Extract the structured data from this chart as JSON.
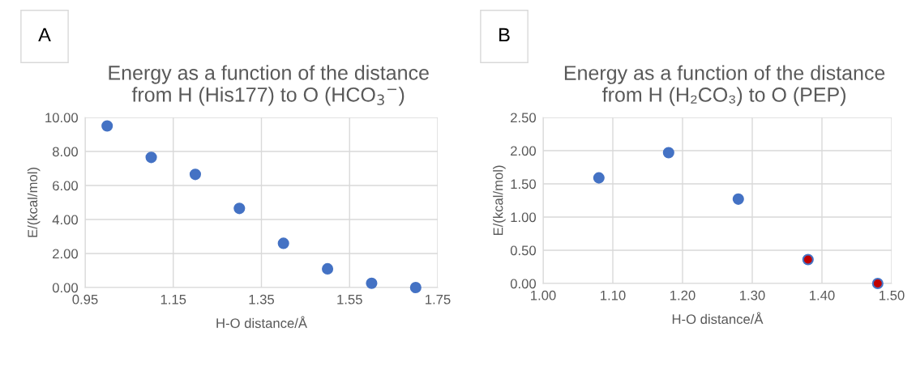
{
  "chart_data": [
    {
      "type": "scatter",
      "title": "Energy as a function of the distance\nfrom H (His177) to O (HCO$_{3}$$^{−}$)",
      "xlabel": "H-O distance/Å",
      "ylabel": "E/(kcal/mol)",
      "annotations": [
        "A"
      ],
      "x": [
        1.0,
        1.1,
        1.2,
        1.3,
        1.4,
        1.5,
        1.6,
        1.7
      ],
      "series": [
        {
          "color": "#4472c4",
          "values": [
            9.5,
            7.65,
            6.65,
            4.65,
            2.6,
            1.1,
            0.25,
            0.0
          ]
        }
      ],
      "xlim": [
        0.95,
        1.75
      ],
      "ylim": [
        0,
        10
      ],
      "xticks": [
        {
          "value": 0.95,
          "label": "0.95"
        },
        {
          "value": 1.15,
          "label": "1.15"
        },
        {
          "value": 1.35,
          "label": "1.35"
        },
        {
          "value": 1.55,
          "label": "1.55"
        },
        {
          "value": 1.75,
          "label": "1.75"
        }
      ],
      "yticks": [
        {
          "value": 0,
          "label": "0.00"
        },
        {
          "value": 2,
          "label": "2.00"
        },
        {
          "value": 4,
          "label": "4.00"
        },
        {
          "value": 6,
          "label": "6.00"
        },
        {
          "value": 8,
          "label": "8.00"
        },
        {
          "value": 10,
          "label": "10.00"
        }
      ],
      "grid": true,
      "marker": "circle"
    },
    {
      "type": "scatter",
      "title": "Energy as a function of the distance\nfrom H (H₂CO₃) to O (PEP)",
      "xlabel": "H-O distance/Å",
      "ylabel": "E/(kcal/mol)",
      "annotations": [
        "B"
      ],
      "x": [
        1.08,
        1.18,
        1.28,
        1.38,
        1.48
      ],
      "series": [
        {
          "color": "#4472c4",
          "colors": [
            "#4472c4",
            "#4472c4",
            "#4472c4",
            "#c00000",
            "#c00000"
          ],
          "values": [
            1.59,
            1.97,
            1.27,
            0.36,
            0.0
          ]
        }
      ],
      "xlim": [
        1.0,
        1.5
      ],
      "ylim": [
        0,
        2.5
      ],
      "xticks": [
        {
          "value": 1.0,
          "label": "1.00"
        },
        {
          "value": 1.1,
          "label": "1.10"
        },
        {
          "value": 1.2,
          "label": "1.20"
        },
        {
          "value": 1.3,
          "label": "1.30"
        },
        {
          "value": 1.4,
          "label": "1.40"
        },
        {
          "value": 1.5,
          "label": "1.50"
        }
      ],
      "yticks": [
        {
          "value": 0,
          "label": "0.00"
        },
        {
          "value": 0.5,
          "label": "0.50"
        },
        {
          "value": 1.0,
          "label": "1.00"
        },
        {
          "value": 1.5,
          "label": "1.50"
        },
        {
          "value": 2.0,
          "label": "2.00"
        },
        {
          "value": 2.5,
          "label": "2.50"
        }
      ],
      "grid": true,
      "marker": "circle"
    }
  ]
}
